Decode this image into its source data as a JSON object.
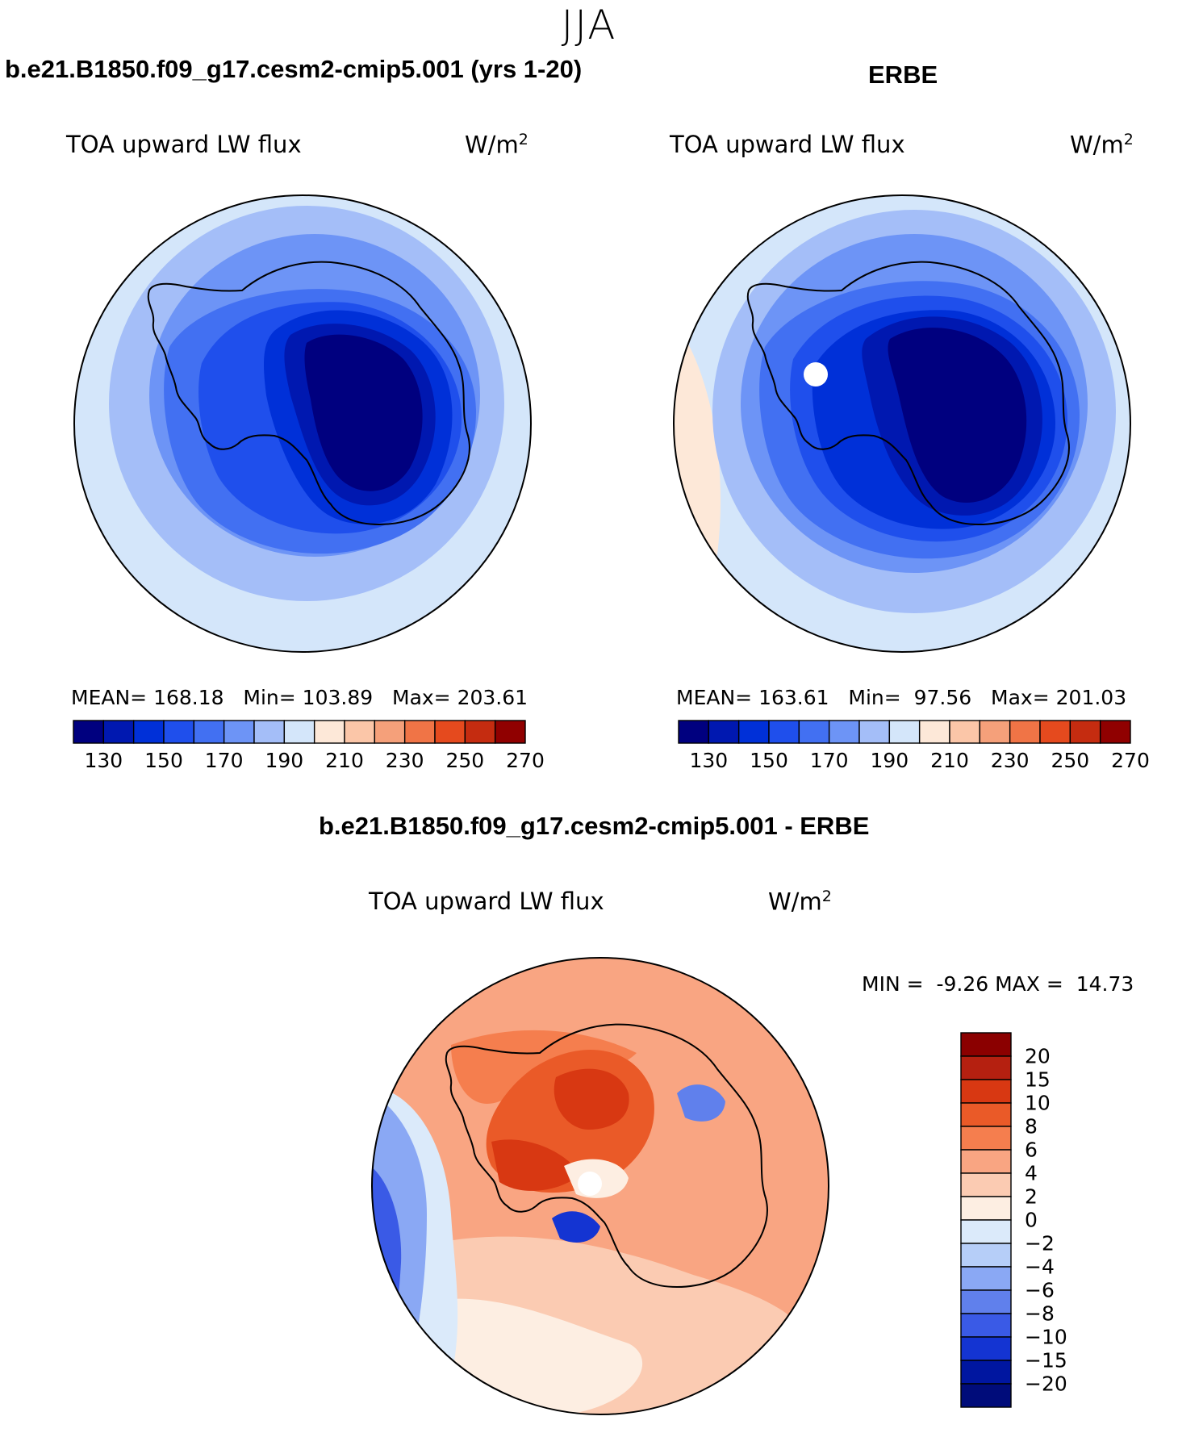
{
  "figure": {
    "season": "JJA",
    "model_title": "b.e21.B1850.f09_g17.cesm2-cmip5.001 (yrs 1-20)",
    "obs_title": "ERBE",
    "diff_title": "b.e21.B1850.f09_g17.cesm2-cmip5.001 - ERBE"
  },
  "chart_data": [
    {
      "type": "heatmap",
      "projection": "south polar stereographic",
      "title": "TOA upward LW flux",
      "units": "W/m",
      "units_exp": "2",
      "stats": {
        "mean_label": "MEAN=",
        "mean": "168.18",
        "min_label": "Min=",
        "min": "103.89",
        "max_label": "Max=",
        "max": "203.61"
      },
      "levels": [
        130,
        140,
        150,
        160,
        170,
        180,
        190,
        200,
        210,
        220,
        230,
        240,
        250,
        260,
        270
      ],
      "tick_labels": [
        "130",
        "150",
        "170",
        "190",
        "210",
        "230",
        "250",
        "270"
      ],
      "colors": [
        "#00007f",
        "#0018b0",
        "#0030d8",
        "#1f4fec",
        "#4270f2",
        "#6d94f6",
        "#a4bef8",
        "#d4e6fa",
        "#fde8d8",
        "#fbc6a8",
        "#f5a07a",
        "#f07446",
        "#e54a1e",
        "#c52c10",
        "#900000"
      ]
    },
    {
      "type": "heatmap",
      "projection": "south polar stereographic",
      "title": "TOA upward LW flux",
      "units": "W/m",
      "units_exp": "2",
      "stats": {
        "mean_label": "MEAN=",
        "mean": "163.61",
        "min_label": "Min=",
        "min": "97.56",
        "max_label": "Max=",
        "max": "201.03"
      },
      "levels": [
        130,
        140,
        150,
        160,
        170,
        180,
        190,
        200,
        210,
        220,
        230,
        240,
        250,
        260,
        270
      ],
      "tick_labels": [
        "130",
        "150",
        "170",
        "190",
        "210",
        "230",
        "250",
        "270"
      ],
      "colors": [
        "#00007f",
        "#0018b0",
        "#0030d8",
        "#1f4fec",
        "#4270f2",
        "#6d94f6",
        "#a4bef8",
        "#d4e6fa",
        "#fde8d8",
        "#fbc6a8",
        "#f5a07a",
        "#f07446",
        "#e54a1e",
        "#c52c10",
        "#900000"
      ]
    },
    {
      "type": "heatmap",
      "projection": "south polar stereographic",
      "title": "TOA upward LW flux",
      "units": "W/m",
      "units_exp": "2",
      "stats": {
        "min_label": "MIN =",
        "min": "-9.26",
        "max_label": "MAX =",
        "max": "14.73"
      },
      "levels": [
        20,
        15,
        10,
        8,
        6,
        4,
        2,
        0,
        -2,
        -4,
        -6,
        -8,
        -10,
        -15,
        -20
      ],
      "tick_labels": [
        "20",
        "15",
        "10",
        "8",
        "6",
        "4",
        "2",
        "0",
        "−2",
        "−4",
        "−6",
        "−8",
        "−10",
        "−15",
        "−20"
      ],
      "colors": [
        "#8b0000",
        "#b52010",
        "#d83812",
        "#ea5a28",
        "#f57e4e",
        "#f9a582",
        "#fbcbb2",
        "#fdeee2",
        "#dbeafa",
        "#b6cef8",
        "#8aa8f4",
        "#6080ec",
        "#3a5ae6",
        "#1434d2",
        "#0016a0",
        "#000c7a"
      ]
    }
  ]
}
